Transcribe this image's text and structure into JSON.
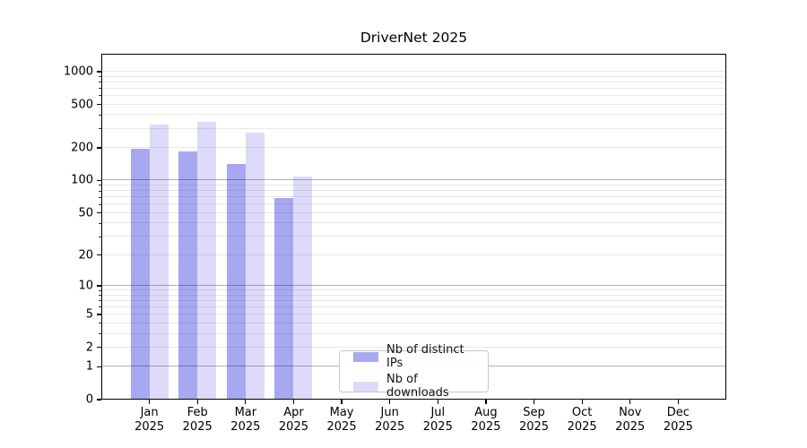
{
  "chart_data": {
    "type": "bar",
    "title": "DriverNet 2025",
    "x_tick_labels": [
      {
        "month": "Jan",
        "year": "2025"
      },
      {
        "month": "Feb",
        "year": "2025"
      },
      {
        "month": "Mar",
        "year": "2025"
      },
      {
        "month": "Apr",
        "year": "2025"
      },
      {
        "month": "May",
        "year": "2025"
      },
      {
        "month": "Jun",
        "year": "2025"
      },
      {
        "month": "Jul",
        "year": "2025"
      },
      {
        "month": "Aug",
        "year": "2025"
      },
      {
        "month": "Sep",
        "year": "2025"
      },
      {
        "month": "Oct",
        "year": "2025"
      },
      {
        "month": "Nov",
        "year": "2025"
      },
      {
        "month": "Dec",
        "year": "2025"
      }
    ],
    "series": [
      {
        "key": "distinct-ips",
        "name": "Nb of distinct IPs",
        "color": "#a8a8f2",
        "values": [
          195,
          186,
          143,
          69,
          0,
          0,
          0,
          0,
          0,
          0,
          0,
          0
        ]
      },
      {
        "key": "downloads",
        "name": "Nb of downloads",
        "color": "#dcdcfa",
        "values": [
          328,
          347,
          278,
          108,
          0,
          0,
          0,
          0,
          0,
          0,
          0,
          0
        ]
      }
    ],
    "y_axis": {
      "scale": "log10(value+1)",
      "tick_values": [
        0,
        1,
        2,
        5,
        10,
        20,
        50,
        100,
        200,
        500,
        1000
      ],
      "major_grid_values": [
        1,
        10,
        100
      ],
      "minor_grid_values": [
        2,
        3,
        4,
        5,
        6,
        7,
        8,
        9,
        20,
        30,
        40,
        50,
        60,
        70,
        80,
        90,
        200,
        300,
        400,
        500,
        600,
        700,
        800,
        900,
        1000
      ],
      "ylim": [
        0,
        1460
      ]
    },
    "legend": {
      "position": "lower center"
    },
    "grid": true
  },
  "colors": {
    "background": "#ffffff",
    "bar_distinct_ips": "#a8a8f2",
    "bar_downloads": "#dcdcfa",
    "axis": "#000000",
    "major_grid": "rgba(0,0,0,0.30)",
    "minor_grid": "rgba(0,0,0,0.09)",
    "legend_border": "#c8c8c8",
    "text": "#000000"
  }
}
